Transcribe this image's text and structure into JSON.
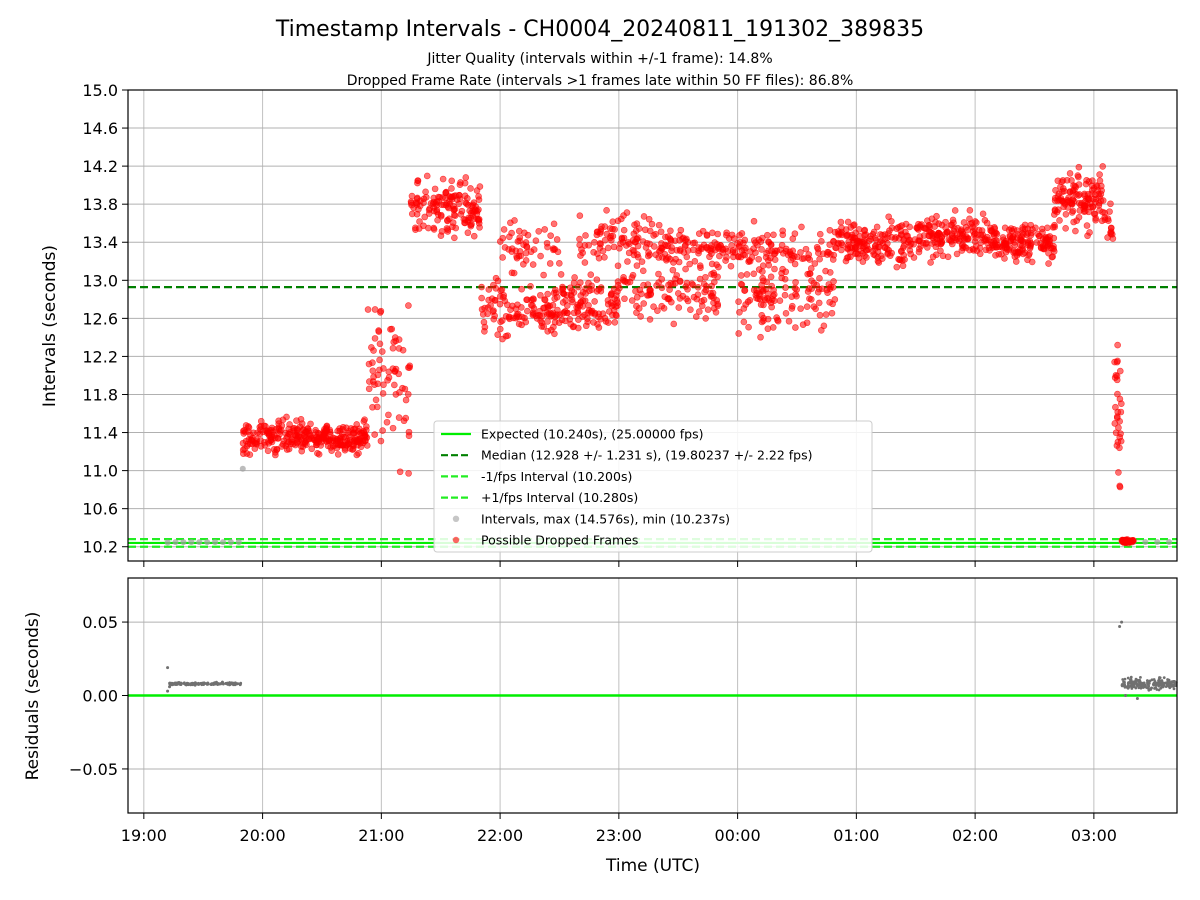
{
  "figure": {
    "title": "Timestamp Intervals - CH0004_20240811_191302_389835",
    "subtitle_lines": [
      "Jitter Quality (intervals within +/-1 frame): 14.8%",
      "Dropped Frame Rate (intervals >1 frames late within 50 FF files): 86.8%"
    ],
    "xlabel": "Time (UTC)"
  },
  "colors": {
    "expected": "#00ee00",
    "median": "#008000",
    "fps_interval": "#22ee22",
    "intervals": "#a0a0a0",
    "dropped": "#ff0000",
    "residuals": "#707070",
    "grid": "#b0b0b0"
  },
  "chart_data": [
    {
      "type": "scatter",
      "ylabel": "Intervals (seconds)",
      "x_ticks": [
        "19:00",
        "20:00",
        "21:00",
        "22:00",
        "23:00",
        "00:00",
        "01:00",
        "02:00",
        "03:00"
      ],
      "xlim": [
        "18:52",
        "03:42"
      ],
      "ylim": [
        10.05,
        15.0
      ],
      "y_ticks": [
        10.2,
        10.6,
        11.0,
        11.4,
        11.8,
        12.2,
        12.6,
        13.0,
        13.4,
        13.8,
        14.2,
        14.6,
        15.0
      ],
      "grid": true,
      "legend_position": "lower-center",
      "lines": [
        {
          "name": "Expected (10.240s), (25.00000 fps)",
          "y": 10.24,
          "style": "solid",
          "color_key": "expected"
        },
        {
          "name": "Median (12.928 +/- 1.231 s), (19.80237 +/- 2.22 fps)",
          "y": 12.928,
          "style": "dashed",
          "color_key": "median"
        },
        {
          "name": "-1/fps Interval (10.200s)",
          "y": 10.2,
          "style": "dashed",
          "color_key": "fps_interval"
        },
        {
          "name": "+1/fps Interval (10.280s)",
          "y": 10.28,
          "style": "dashed",
          "color_key": "fps_interval"
        }
      ],
      "series": [
        {
          "name": "Intervals, max (14.576s), min (10.237s)",
          "kind": "points",
          "color_key": "intervals",
          "points": [
            [
              "19:12",
              10.245
            ],
            [
              "19:16",
              10.248
            ],
            [
              "19:20",
              10.248
            ],
            [
              "19:24",
              10.248
            ],
            [
              "19:28",
              10.248
            ],
            [
              "19:32",
              10.248
            ],
            [
              "19:36",
              10.248
            ],
            [
              "19:40",
              10.248
            ],
            [
              "19:44",
              10.248
            ],
            [
              "19:48",
              10.248
            ],
            [
              "19:50",
              11.02
            ],
            [
              "03:14",
              10.25
            ],
            [
              "03:20",
              10.25
            ],
            [
              "03:26",
              10.25
            ],
            [
              "03:32",
              10.25
            ],
            [
              "03:38",
              10.25
            ]
          ]
        },
        {
          "name": "Possible Dropped Frames",
          "kind": "segments",
          "color_key": "dropped",
          "segments": [
            {
              "from": "19:50",
              "to": "20:53",
              "mean": 11.35,
              "spread": 0.16,
              "n": 300
            },
            {
              "from": "20:53",
              "to": "21:15",
              "mean": 12.0,
              "spread": 0.8,
              "n": 70
            },
            {
              "from": "21:15",
              "to": "21:50",
              "mean": 13.75,
              "spread": 0.28,
              "n": 150
            },
            {
              "from": "21:50",
              "to": "22:30",
              "mean": 12.7,
              "spread": 0.3,
              "n": 120
            },
            {
              "from": "22:00",
              "to": "22:30",
              "mean": 13.35,
              "spread": 0.25,
              "n": 50
            },
            {
              "from": "22:30",
              "to": "23:00",
              "mean": 12.75,
              "spread": 0.25,
              "n": 110
            },
            {
              "from": "22:40",
              "to": "23:20",
              "mean": 13.45,
              "spread": 0.25,
              "n": 90
            },
            {
              "from": "23:00",
              "to": "23:50",
              "mean": 12.9,
              "spread": 0.35,
              "n": 110
            },
            {
              "from": "23:20",
              "to": "00:00",
              "mean": 13.35,
              "spread": 0.2,
              "n": 100
            },
            {
              "from": "00:00",
              "to": "00:50",
              "mean": 12.8,
              "spread": 0.3,
              "n": 110
            },
            {
              "from": "00:00",
              "to": "00:50",
              "mean": 13.3,
              "spread": 0.25,
              "n": 110
            },
            {
              "from": "00:50",
              "to": "01:30",
              "mean": 13.4,
              "spread": 0.22,
              "n": 160
            },
            {
              "from": "01:30",
              "to": "02:10",
              "mean": 13.45,
              "spread": 0.2,
              "n": 170
            },
            {
              "from": "02:10",
              "to": "02:40",
              "mean": 13.4,
              "spread": 0.18,
              "n": 140
            },
            {
              "from": "02:40",
              "to": "03:05",
              "mean": 13.85,
              "spread": 0.3,
              "n": 130
            },
            {
              "from": "03:05",
              "to": "03:10",
              "mean": 13.6,
              "spread": 0.2,
              "n": 15
            },
            {
              "from": "03:10",
              "to": "03:14",
              "mean": 11.6,
              "spread": 0.8,
              "n": 30
            },
            {
              "from": "03:14",
              "to": "03:20",
              "mean": 10.26,
              "spread": 0.02,
              "n": 40
            }
          ]
        }
      ]
    },
    {
      "type": "scatter",
      "ylabel": "Residuals (seconds)",
      "x_ticks": [
        "19:00",
        "20:00",
        "21:00",
        "22:00",
        "23:00",
        "00:00",
        "01:00",
        "02:00",
        "03:00"
      ],
      "xlim": [
        "18:52",
        "03:42"
      ],
      "ylim": [
        -0.08,
        0.08
      ],
      "y_ticks": [
        -0.05,
        0.0,
        0.05
      ],
      "y_tick_labels": [
        "−0.05",
        "0.00",
        "0.05"
      ],
      "grid": true,
      "zero_line": 0.0,
      "series": [
        {
          "name": "Residuals",
          "color_key": "residuals",
          "segments": [
            {
              "from": "19:13",
              "to": "19:50",
              "mean": 0.008,
              "spread": 0.0008,
              "n": 150
            },
            {
              "from": "03:14",
              "to": "03:42",
              "mean": 0.008,
              "spread": 0.004,
              "n": 180
            }
          ],
          "points": [
            [
              "19:12",
              0.019
            ],
            [
              "19:12",
              0.003
            ],
            [
              "19:13",
              0.006
            ],
            [
              "03:13",
              0.047
            ],
            [
              "03:14",
              0.05
            ],
            [
              "03:16",
              0.0
            ],
            [
              "03:22",
              -0.002
            ]
          ]
        }
      ]
    }
  ]
}
